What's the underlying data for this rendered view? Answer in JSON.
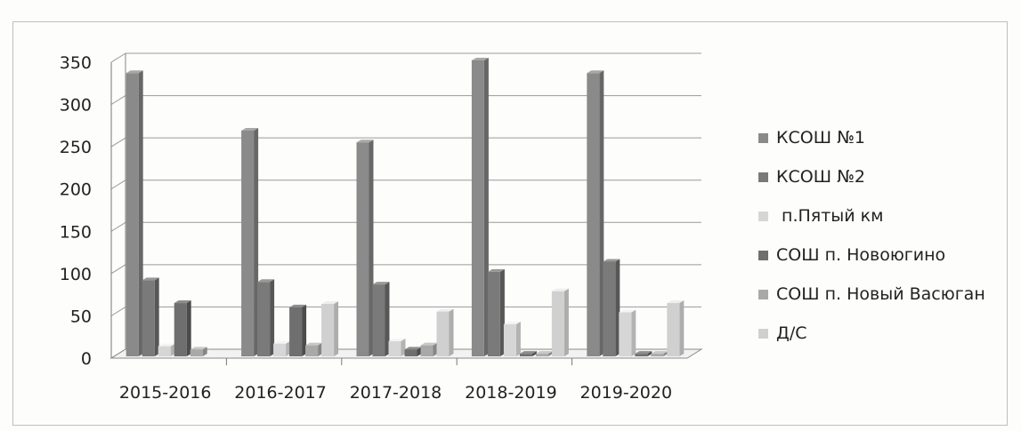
{
  "chart_data": {
    "type": "bar",
    "categories": [
      "2015-2016",
      "2016-2017",
      "2017-2018",
      "2018-2019",
      "2019-2020"
    ],
    "series": [
      {
        "name": "КСОШ №1",
        "values": [
          335,
          267,
          253,
          350,
          335
        ],
        "color": "#8a8a8a"
      },
      {
        "name": "КСОШ №2",
        "values": [
          90,
          88,
          85,
          100,
          112
        ],
        "color": "#7a7a7a"
      },
      {
        "name": " п.Пятый км",
        "values": [
          12,
          15,
          18,
          38,
          52
        ],
        "color": "#d6d6d6"
      },
      {
        "name": "СОШ п. Новоюгино",
        "values": [
          63,
          58,
          8,
          3,
          3
        ],
        "color": "#6f6f6f"
      },
      {
        "name": "СОШ п. Новый Васюган",
        "values": [
          8,
          13,
          13,
          3,
          3
        ],
        "color": "#a9a9a9"
      },
      {
        "name": "Д/С",
        "values": [
          0,
          62,
          53,
          77,
          63
        ],
        "color": "#d0d0d0"
      }
    ],
    "y_ticks": [
      "0",
      "50",
      "100",
      "150",
      "200",
      "250",
      "300",
      "350"
    ],
    "ylim": [
      0,
      350
    ],
    "grid": true,
    "legend_position": "right"
  }
}
